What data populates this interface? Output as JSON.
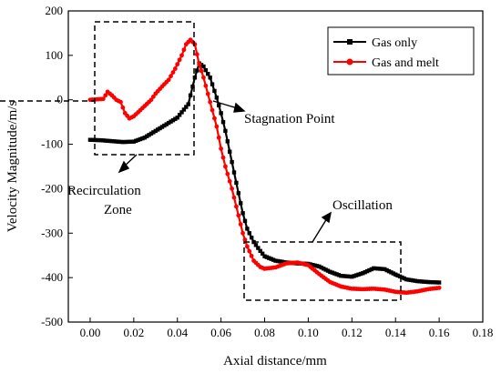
{
  "chart_data": {
    "type": "line",
    "xlabel": "Axial distance/mm",
    "ylabel": "Velocity Magnitude/m/s",
    "xlim": [
      -0.01,
      0.18
    ],
    "ylim": [
      -500,
      200
    ],
    "x_ticks": [
      0.0,
      0.02,
      0.04,
      0.06,
      0.08,
      0.1,
      0.12,
      0.14,
      0.16,
      0.18
    ],
    "x_tick_labels": [
      "0.00",
      "0.02",
      "0.04",
      "0.06",
      "0.08",
      "0.10",
      "0.12",
      "0.14",
      "0.16",
      "0.18"
    ],
    "y_ticks": [
      -500,
      -400,
      -300,
      -200,
      -100,
      0,
      100,
      200
    ],
    "y_tick_labels": [
      "-500",
      "-400",
      "-300",
      "-200",
      "-100",
      "0",
      "100",
      "200"
    ],
    "grid": false,
    "legend_position": "top-right",
    "series": [
      {
        "name": "Gas only",
        "color": "#000000",
        "marker": "square",
        "points": [
          [
            0.0,
            -90
          ],
          [
            0.005,
            -91
          ],
          [
            0.01,
            -93
          ],
          [
            0.015,
            -95
          ],
          [
            0.02,
            -94
          ],
          [
            0.025,
            -85
          ],
          [
            0.03,
            -70
          ],
          [
            0.035,
            -55
          ],
          [
            0.04,
            -40
          ],
          [
            0.045,
            -10
          ],
          [
            0.048,
            50
          ],
          [
            0.05,
            82
          ],
          [
            0.052,
            75
          ],
          [
            0.055,
            50
          ],
          [
            0.058,
            5
          ],
          [
            0.06,
            -30
          ],
          [
            0.062,
            -70
          ],
          [
            0.065,
            -140
          ],
          [
            0.068,
            -210
          ],
          [
            0.07,
            -255
          ],
          [
            0.072,
            -290
          ],
          [
            0.075,
            -320
          ],
          [
            0.078,
            -340
          ],
          [
            0.08,
            -352
          ],
          [
            0.085,
            -362
          ],
          [
            0.09,
            -366
          ],
          [
            0.095,
            -368
          ],
          [
            0.1,
            -369
          ],
          [
            0.105,
            -375
          ],
          [
            0.11,
            -387
          ],
          [
            0.115,
            -396
          ],
          [
            0.12,
            -398
          ],
          [
            0.125,
            -390
          ],
          [
            0.13,
            -379
          ],
          [
            0.135,
            -381
          ],
          [
            0.14,
            -393
          ],
          [
            0.145,
            -404
          ],
          [
            0.15,
            -408
          ],
          [
            0.155,
            -410
          ],
          [
            0.16,
            -411
          ]
        ]
      },
      {
        "name": "Gas and melt",
        "color": "#ff0000",
        "marker": "circle",
        "points": [
          [
            0.0,
            0
          ],
          [
            0.003,
            1
          ],
          [
            0.006,
            2
          ],
          [
            0.008,
            18
          ],
          [
            0.01,
            10
          ],
          [
            0.012,
            0
          ],
          [
            0.014,
            -5
          ],
          [
            0.016,
            -30
          ],
          [
            0.018,
            -42
          ],
          [
            0.02,
            -37
          ],
          [
            0.022,
            -28
          ],
          [
            0.025,
            -14
          ],
          [
            0.028,
            0
          ],
          [
            0.03,
            14
          ],
          [
            0.033,
            30
          ],
          [
            0.036,
            45
          ],
          [
            0.039,
            70
          ],
          [
            0.042,
            100
          ],
          [
            0.044,
            125
          ],
          [
            0.046,
            135
          ],
          [
            0.048,
            125
          ],
          [
            0.05,
            80
          ],
          [
            0.052,
            50
          ],
          [
            0.055,
            -5
          ],
          [
            0.058,
            -60
          ],
          [
            0.06,
            -110
          ],
          [
            0.062,
            -150
          ],
          [
            0.065,
            -200
          ],
          [
            0.068,
            -260
          ],
          [
            0.07,
            -300
          ],
          [
            0.072,
            -330
          ],
          [
            0.075,
            -362
          ],
          [
            0.078,
            -376
          ],
          [
            0.08,
            -380
          ],
          [
            0.085,
            -377
          ],
          [
            0.09,
            -368
          ],
          [
            0.095,
            -366
          ],
          [
            0.1,
            -372
          ],
          [
            0.105,
            -392
          ],
          [
            0.11,
            -410
          ],
          [
            0.115,
            -420
          ],
          [
            0.12,
            -425
          ],
          [
            0.125,
            -426
          ],
          [
            0.13,
            -425
          ],
          [
            0.135,
            -427
          ],
          [
            0.14,
            -432
          ],
          [
            0.145,
            -434
          ],
          [
            0.15,
            -431
          ],
          [
            0.155,
            -426
          ],
          [
            0.16,
            -423
          ]
        ]
      }
    ],
    "annotations": [
      {
        "text": "Stagnation Point"
      },
      {
        "text": "Recirculation"
      },
      {
        "text": "Zone"
      },
      {
        "text": "Oscillation"
      }
    ]
  }
}
